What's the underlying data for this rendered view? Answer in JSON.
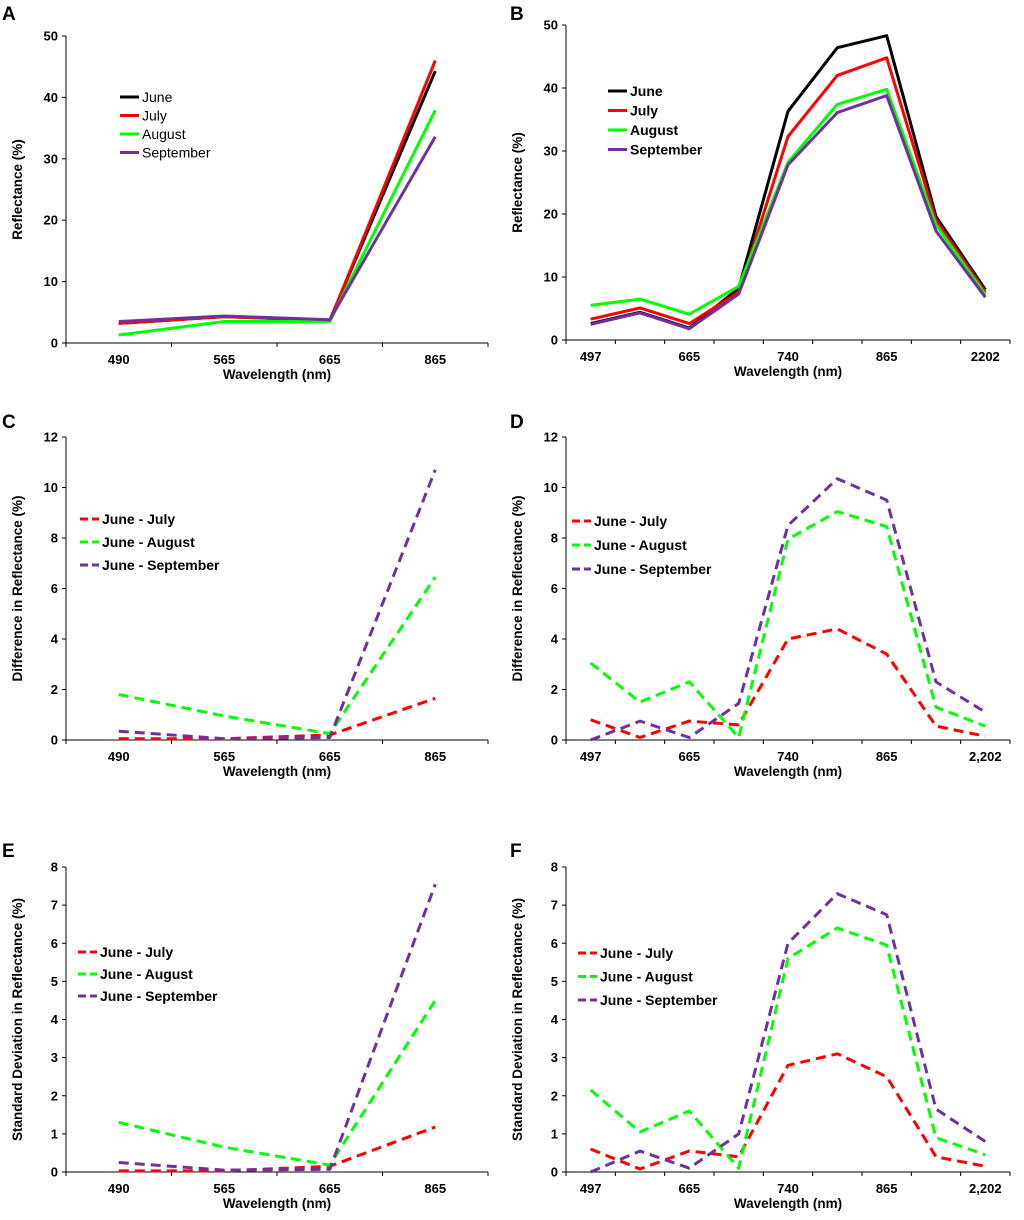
{
  "chart_data": [
    {
      "id": "A",
      "type": "line",
      "title": "A",
      "xlabel": "Wavelength (nm)",
      "ylabel": "Reflectance (%)",
      "categories": [
        "490",
        "565",
        "665",
        "865"
      ],
      "ylim": [
        0,
        50
      ],
      "yticks": [
        0,
        10,
        20,
        30,
        40,
        50
      ],
      "grid": false,
      "legend_placement": "top-left",
      "series": [
        {
          "name": "June",
          "color": "#000000",
          "dashed": false,
          "values": [
            3.2,
            4.3,
            3.7,
            44.3
          ]
        },
        {
          "name": "July",
          "color": "#ff0000",
          "dashed": false,
          "values": [
            3.2,
            4.3,
            3.6,
            46.0
          ]
        },
        {
          "name": "August",
          "color": "#00ff00",
          "dashed": false,
          "values": [
            1.3,
            3.5,
            3.5,
            37.9
          ]
        },
        {
          "name": "September",
          "color": "#7030a0",
          "dashed": false,
          "values": [
            3.5,
            4.4,
            3.8,
            33.6
          ]
        }
      ]
    },
    {
      "id": "B",
      "type": "line",
      "title": "B",
      "xlabel": "Wavelength (nm)",
      "ylabel": "Reflectance (%)",
      "categories": [
        "497",
        "",
        "665",
        "",
        "740",
        "",
        "865",
        "",
        "2202"
      ],
      "ylim": [
        0,
        50
      ],
      "yticks": [
        0,
        10,
        20,
        30,
        40,
        50
      ],
      "grid": false,
      "legend_placement": "top-left",
      "series": [
        {
          "name": "June",
          "color": "#000000",
          "dashed": false,
          "values": [
            2.6,
            4.4,
            1.9,
            8.2,
            36.3,
            46.4,
            48.3,
            19.6,
            8.0
          ]
        },
        {
          "name": "July",
          "color": "#ff0000",
          "dashed": false,
          "values": [
            3.3,
            5.1,
            2.6,
            7.6,
            32.3,
            42.0,
            44.8,
            19.0,
            7.6
          ]
        },
        {
          "name": "August",
          "color": "#00ff00",
          "dashed": false,
          "values": [
            5.5,
            6.5,
            4.1,
            8.5,
            28.2,
            37.4,
            39.8,
            18.3,
            7.2
          ]
        },
        {
          "name": "September",
          "color": "#7030a0",
          "dashed": false,
          "values": [
            2.5,
            4.3,
            1.8,
            7.3,
            27.8,
            36.1,
            38.8,
            17.3,
            6.8
          ]
        }
      ]
    },
    {
      "id": "C",
      "type": "line",
      "title": "C",
      "xlabel": "Wavelength (nm)",
      "ylabel": "Difference in Reflectance (%)",
      "categories": [
        "490",
        "565",
        "665",
        "865"
      ],
      "ylim": [
        0,
        12
      ],
      "yticks": [
        0,
        2,
        4,
        6,
        8,
        10,
        12
      ],
      "grid": false,
      "legend_placement": "middle-left",
      "series": [
        {
          "name": "June - July",
          "color": "#ff0000",
          "dashed": true,
          "values": [
            0.05,
            0.05,
            0.2,
            1.65
          ]
        },
        {
          "name": "June - August",
          "color": "#00ff00",
          "dashed": true,
          "values": [
            1.8,
            0.95,
            0.25,
            6.45
          ]
        },
        {
          "name": "June - September",
          "color": "#7030a0",
          "dashed": true,
          "values": [
            0.35,
            0.05,
            0.1,
            10.7
          ]
        }
      ]
    },
    {
      "id": "D",
      "type": "line",
      "title": "D",
      "xlabel": "Wavelength (nm)",
      "ylabel": "Difference in Reflectance (%)",
      "categories": [
        "497",
        "",
        "665",
        "",
        "740",
        "",
        "865",
        "",
        "2,202"
      ],
      "ylim": [
        0,
        12
      ],
      "yticks": [
        0,
        2,
        4,
        6,
        8,
        10,
        12
      ],
      "grid": false,
      "legend_placement": "top-left",
      "series": [
        {
          "name": "June - July",
          "color": "#ff0000",
          "dashed": true,
          "values": [
            0.8,
            0.1,
            0.75,
            0.6,
            4.0,
            4.4,
            3.4,
            0.55,
            0.15
          ]
        },
        {
          "name": "June - August",
          "color": "#00ff00",
          "dashed": true,
          "values": [
            3.05,
            1.5,
            2.3,
            0.1,
            7.95,
            9.05,
            8.45,
            1.3,
            0.55
          ]
        },
        {
          "name": "June - September",
          "color": "#7030a0",
          "dashed": true,
          "values": [
            0.0,
            0.75,
            0.1,
            1.45,
            8.5,
            10.35,
            9.5,
            2.3,
            1.1
          ]
        }
      ]
    },
    {
      "id": "E",
      "type": "line",
      "title": "E",
      "xlabel": "Wavelength (nm)",
      "ylabel": "Standard Deviation in Reflectance (%)",
      "categories": [
        "490",
        "565",
        "665",
        "865"
      ],
      "ylim": [
        0,
        8
      ],
      "yticks": [
        0,
        1,
        2,
        3,
        4,
        5,
        6,
        7,
        8
      ],
      "grid": false,
      "legend_placement": "middle-left",
      "series": [
        {
          "name": "June - July",
          "color": "#ff0000",
          "dashed": true,
          "values": [
            0.03,
            0.03,
            0.15,
            1.18
          ]
        },
        {
          "name": "June - August",
          "color": "#00ff00",
          "dashed": true,
          "values": [
            1.3,
            0.65,
            0.18,
            4.5
          ]
        },
        {
          "name": "June - September",
          "color": "#7030a0",
          "dashed": true,
          "values": [
            0.25,
            0.05,
            0.07,
            7.55
          ]
        }
      ]
    },
    {
      "id": "F",
      "type": "line",
      "title": "F",
      "xlabel": "Wavelength (nm)",
      "ylabel": "Standard Deviation in Reflectance (%)",
      "categories": [
        "497",
        "",
        "665",
        "",
        "740",
        "",
        "865",
        "",
        "2,202"
      ],
      "ylim": [
        0,
        8
      ],
      "yticks": [
        0,
        1,
        2,
        3,
        4,
        5,
        6,
        7,
        8
      ],
      "grid": false,
      "legend_placement": "top-left",
      "series": [
        {
          "name": "June - July",
          "color": "#ff0000",
          "dashed": true,
          "values": [
            0.6,
            0.08,
            0.55,
            0.4,
            2.8,
            3.1,
            2.5,
            0.4,
            0.15
          ]
        },
        {
          "name": "June - August",
          "color": "#00ff00",
          "dashed": true,
          "values": [
            2.15,
            1.05,
            1.6,
            0.1,
            5.6,
            6.4,
            5.95,
            0.9,
            0.45
          ]
        },
        {
          "name": "June - September",
          "color": "#7030a0",
          "dashed": true,
          "values": [
            0.0,
            0.55,
            0.1,
            1.0,
            6.0,
            7.3,
            6.75,
            1.65,
            0.8
          ]
        }
      ]
    }
  ]
}
